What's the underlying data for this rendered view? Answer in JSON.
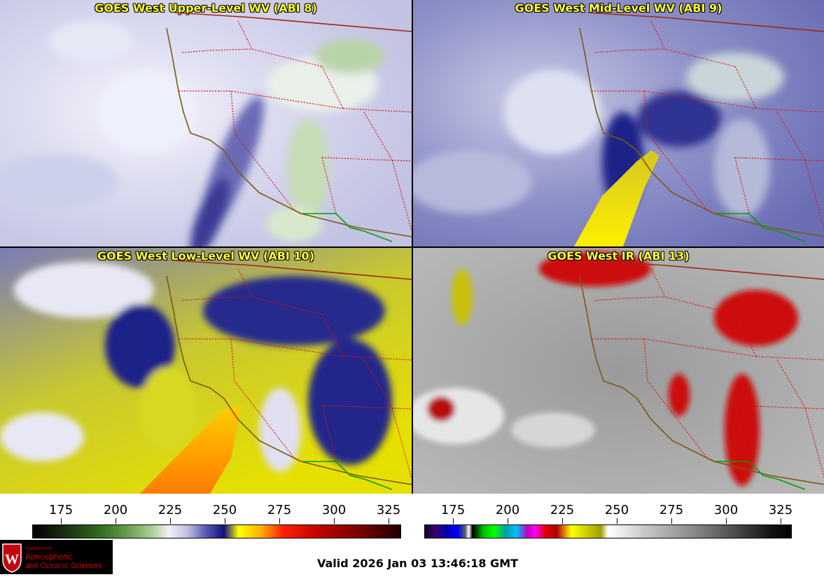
{
  "panels": [
    {
      "title": "GOES West Upper-Level WV (ABI 8)"
    },
    {
      "title": "GOES West Mid-Level WV (ABI 9)"
    },
    {
      "title": "GOES West Low-Level WV (ABI 10)"
    },
    {
      "title": "GOES West IR (ABI 13)"
    }
  ],
  "wv_colorbar": {
    "ticks": [
      "175",
      "200",
      "225",
      "250",
      "275",
      "300",
      "325"
    ]
  },
  "ir_colorbar": {
    "ticks": [
      "175",
      "200",
      "225",
      "250",
      "275",
      "300",
      "325"
    ]
  },
  "logo": {
    "line1": "Department of",
    "line2": "Atmospheric",
    "line3": "and Oceanic Sciences"
  },
  "valid_time": "Valid 2026 Jan 03 13:46:18 GMT",
  "colors": {
    "coast": "#7a5a10",
    "state_borders": "#dd1111",
    "mexico_border": "#00a000",
    "title": "#ffff33"
  }
}
